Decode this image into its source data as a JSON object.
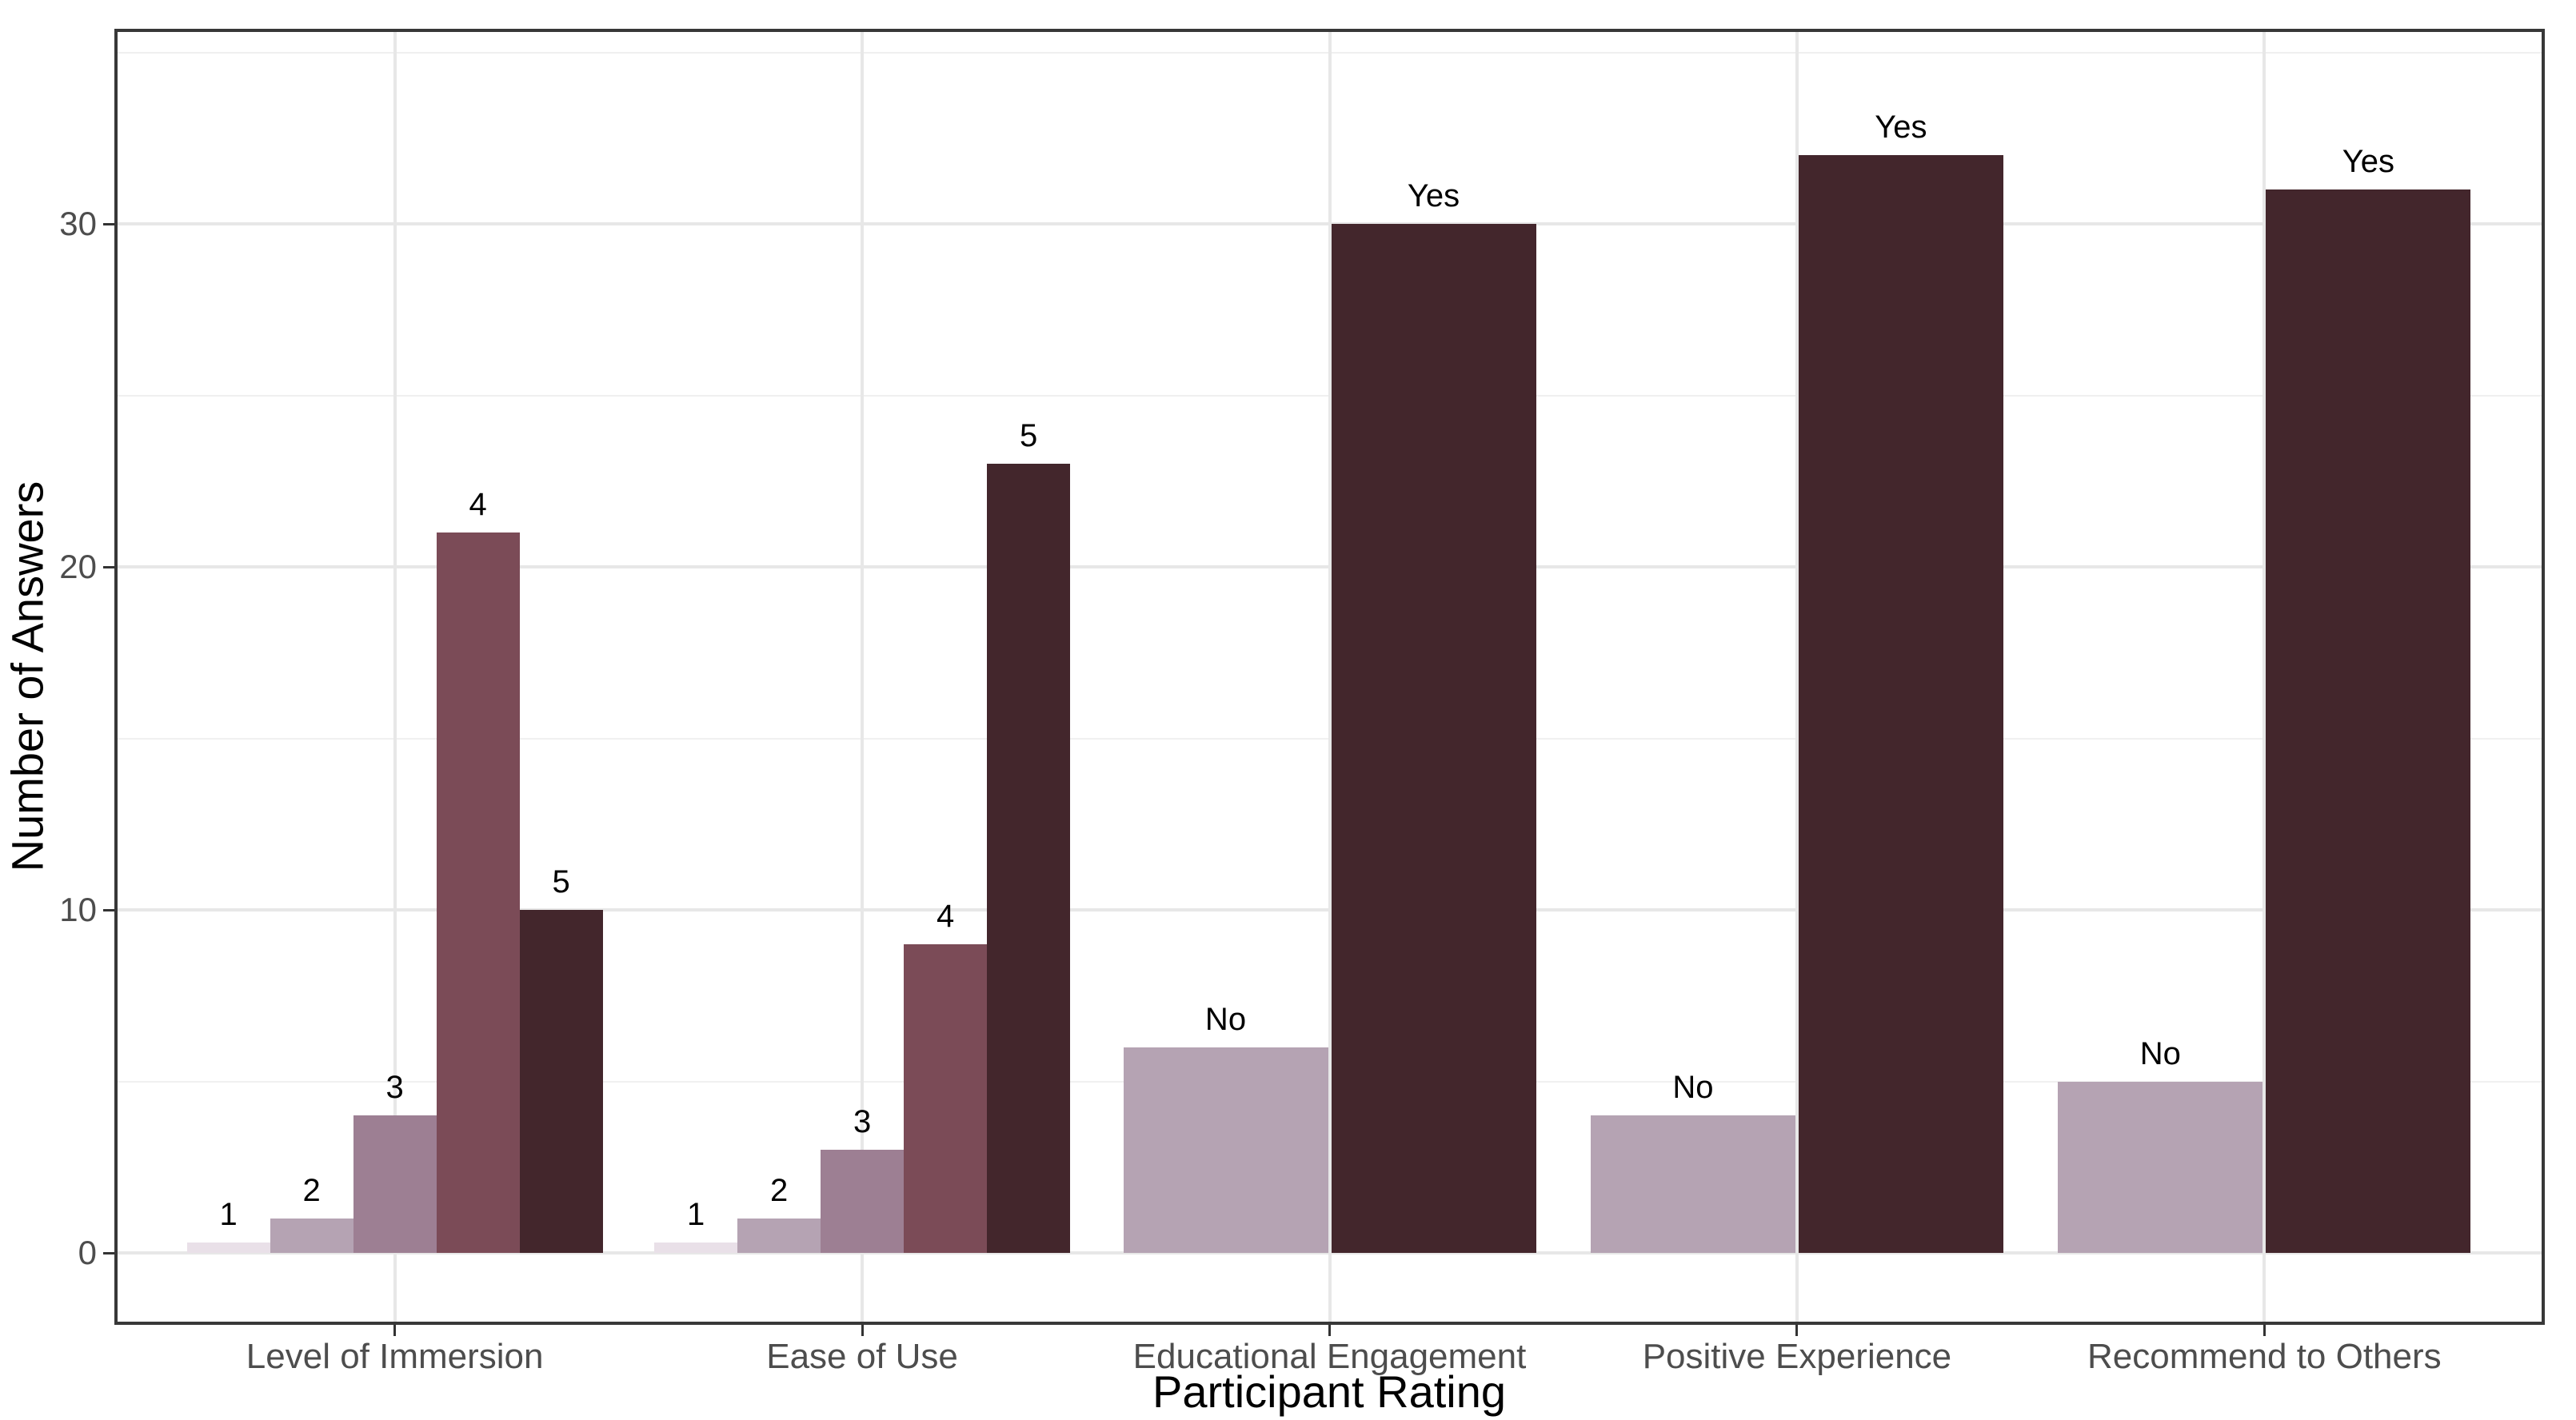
{
  "figure": {
    "background": "#FFFFFF"
  },
  "chart_data": {
    "type": "bar",
    "title": "",
    "xlabel": "Participant Rating",
    "ylabel": "Number of Answers",
    "y_ticks": [
      0,
      10,
      20,
      30
    ],
    "y_minor_ticks": [
      5,
      15,
      25,
      35
    ],
    "ylim": [
      -2.1,
      35.7
    ],
    "grid": true,
    "legend": "none",
    "bar_value_labels_position": "above",
    "palette": {
      "rating_1": "#E9E0E8",
      "rating_2": "#B5A3B3",
      "rating_3": "#9D7F93",
      "rating_4": "#7B4B57",
      "rating_5": "#43262C",
      "no": "#B5A3B3",
      "yes": "#43262C"
    },
    "axis_colors": {
      "panel_border": "#383838",
      "grid_major": "#E7E7E7",
      "grid_minor": "#F0F0F0",
      "tick": "#333333",
      "tick_label": "#4D4D4D",
      "axis_title": "#000000",
      "bar_label": "#000000"
    },
    "categories": [
      "Level of Immersion",
      "Ease of Use",
      "Educational Engagement",
      "Positive Experience",
      "Recommend to Others"
    ],
    "groups": [
      {
        "category": "Level of Immersion",
        "bars": [
          {
            "label": "1",
            "value": 0.3,
            "color": "#E9E0E8"
          },
          {
            "label": "2",
            "value": 1,
            "color": "#B5A3B3"
          },
          {
            "label": "3",
            "value": 4,
            "color": "#9D7F93"
          },
          {
            "label": "4",
            "value": 21,
            "color": "#7B4B57"
          },
          {
            "label": "5",
            "value": 10,
            "color": "#43262C"
          }
        ]
      },
      {
        "category": "Ease of Use",
        "bars": [
          {
            "label": "1",
            "value": 0.3,
            "color": "#E9E0E8"
          },
          {
            "label": "2",
            "value": 1,
            "color": "#B5A3B3"
          },
          {
            "label": "3",
            "value": 3,
            "color": "#9D7F93"
          },
          {
            "label": "4",
            "value": 9,
            "color": "#7B4B57"
          },
          {
            "label": "5",
            "value": 23,
            "color": "#43262C"
          }
        ]
      },
      {
        "category": "Educational Engagement",
        "bars": [
          {
            "label": "No",
            "value": 6,
            "color": "#B5A3B3"
          },
          {
            "label": "Yes",
            "value": 30,
            "color": "#43262C"
          }
        ]
      },
      {
        "category": "Positive Experience",
        "bars": [
          {
            "label": "No",
            "value": 4,
            "color": "#B5A3B3"
          },
          {
            "label": "Yes",
            "value": 32,
            "color": "#43262C"
          }
        ]
      },
      {
        "category": "Recommend to Others",
        "bars": [
          {
            "label": "No",
            "value": 5,
            "color": "#B5A3B3"
          },
          {
            "label": "Yes",
            "value": 31,
            "color": "#43262C"
          }
        ]
      }
    ]
  }
}
